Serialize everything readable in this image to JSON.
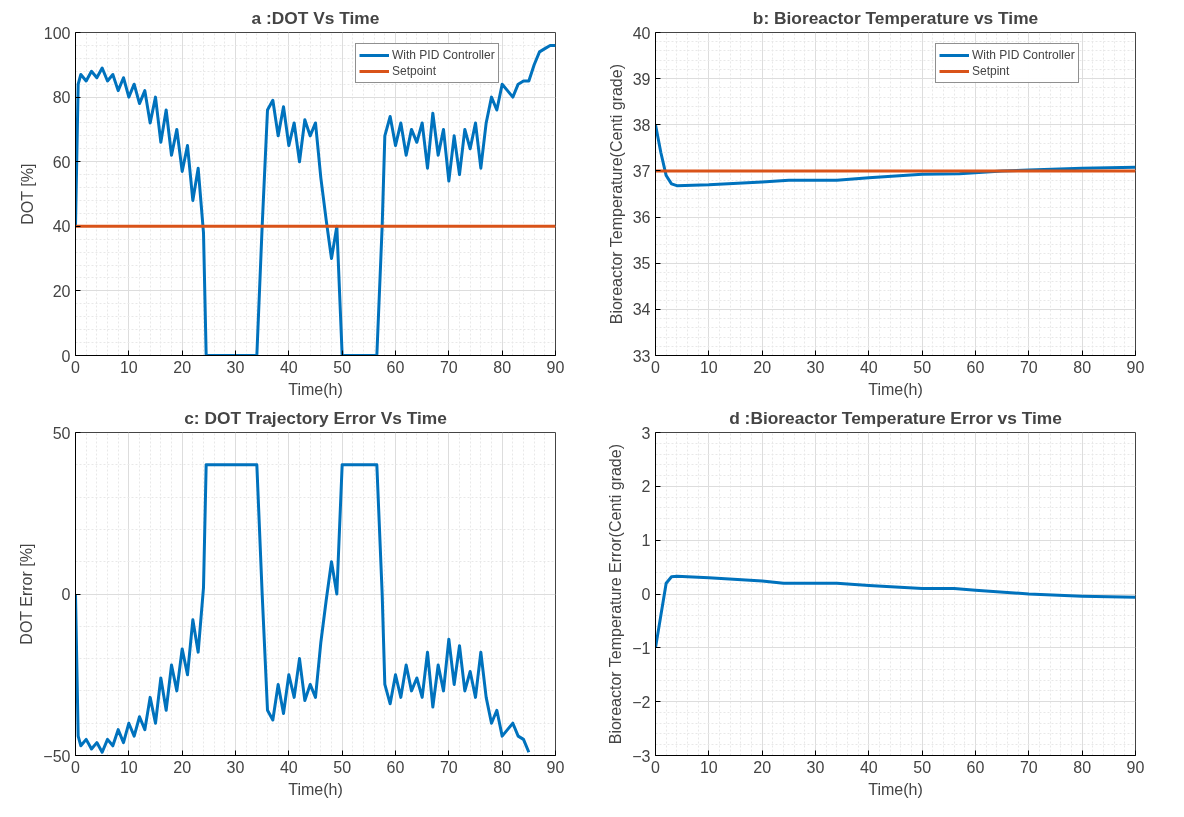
{
  "chart_data": [
    {
      "type": "line",
      "title": "a :DOT Vs Time",
      "xlabel": "Time(h)",
      "ylabel": "DOT [%]",
      "xlim": [
        0,
        90
      ],
      "xticks": [
        0,
        10,
        20,
        30,
        40,
        50,
        60,
        70,
        80,
        90
      ],
      "ylim": [
        0,
        100
      ],
      "yticks": [
        0,
        20,
        40,
        60,
        80,
        100
      ],
      "grid": true,
      "legend": "top right",
      "series": [
        {
          "name": "With PID Controller",
          "color": "#0072bd",
          "x": [
            0,
            0.5,
            1,
            2,
            3,
            4,
            5,
            6,
            7,
            8,
            9,
            10,
            11,
            12,
            13,
            14,
            15,
            16,
            17,
            18,
            19,
            20,
            21,
            22,
            23,
            24,
            24.5,
            34,
            35,
            36,
            37,
            38,
            39,
            40,
            41,
            42,
            43,
            44,
            45,
            46,
            47,
            48,
            49,
            50,
            56.5,
            57.5,
            58,
            59,
            60,
            61,
            62,
            63,
            64,
            65,
            66,
            67,
            68,
            69,
            70,
            71,
            72,
            73,
            74,
            75,
            76,
            77,
            78,
            79,
            80,
            81,
            82,
            83,
            84,
            85,
            86,
            87,
            88,
            89,
            90
          ],
          "values": [
            40,
            84,
            87,
            85,
            88,
            86,
            89,
            85,
            87,
            82,
            86,
            80,
            84,
            78,
            82,
            72,
            80,
            66,
            76,
            62,
            70,
            57,
            65,
            48,
            58,
            38,
            0,
            0,
            40,
            76,
            79,
            68,
            77,
            65,
            72,
            60,
            73,
            68,
            72,
            55,
            42,
            30,
            40,
            0,
            0,
            40,
            68,
            74,
            65,
            72,
            62,
            70,
            66,
            72,
            58,
            75,
            62,
            70,
            54,
            68,
            56,
            70,
            64,
            72,
            58,
            72,
            80,
            76,
            84,
            82,
            80,
            84,
            85,
            85,
            90,
            94,
            95,
            96,
            96
          ]
        },
        {
          "name": "Setpoint",
          "color": "#d95319",
          "x": [
            0,
            90
          ],
          "values": [
            40,
            40
          ]
        }
      ]
    },
    {
      "type": "line",
      "title": "b: Bioreactor Temperature vs Time",
      "xlabel": "Time(h)",
      "ylabel": "Bioreactor Temperature(Centi grade)",
      "xlim": [
        0,
        90
      ],
      "xticks": [
        0,
        10,
        20,
        30,
        40,
        50,
        60,
        70,
        80,
        90
      ],
      "ylim": [
        33,
        40
      ],
      "yticks": [
        33,
        34,
        35,
        36,
        37,
        38,
        39,
        40
      ],
      "grid": true,
      "legend": "top right",
      "series": [
        {
          "name": "With PID Controller",
          "color": "#0072bd",
          "x": [
            0,
            1,
            2,
            3,
            4,
            10,
            20,
            25,
            34,
            40,
            50,
            57,
            65,
            70,
            80,
            90
          ],
          "values": [
            38,
            37.4,
            36.9,
            36.72,
            36.68,
            36.7,
            36.76,
            36.8,
            36.8,
            36.85,
            36.93,
            36.94,
            37.0,
            37.02,
            37.06,
            37.08
          ]
        },
        {
          "name": "Setpint",
          "color": "#d95319",
          "x": [
            0,
            90
          ],
          "values": [
            37,
            37
          ]
        }
      ]
    },
    {
      "type": "line",
      "title": "c: DOT Trajectory Error Vs Time",
      "xlabel": "Time(h)",
      "ylabel": "DOT Error [%]",
      "xlim": [
        0,
        90
      ],
      "xticks": [
        0,
        10,
        20,
        30,
        40,
        50,
        60,
        70,
        80,
        90
      ],
      "ylim": [
        -50,
        50
      ],
      "yticks": [
        -50,
        0,
        50
      ],
      "grid": true,
      "series": [
        {
          "color": "#0072bd",
          "x": [
            0,
            0.5,
            1,
            2,
            3,
            4,
            5,
            6,
            7,
            8,
            9,
            10,
            11,
            12,
            13,
            14,
            15,
            16,
            17,
            18,
            19,
            20,
            21,
            22,
            23,
            24,
            24.5,
            34,
            35,
            36,
            37,
            38,
            39,
            40,
            41,
            42,
            43,
            44,
            45,
            46,
            47,
            48,
            49,
            50,
            56.5,
            57.5,
            58,
            59,
            60,
            61,
            62,
            63,
            64,
            65,
            66,
            67,
            68,
            69,
            70,
            71,
            72,
            73,
            74,
            75,
            76,
            77,
            78,
            79,
            80,
            81,
            82,
            83,
            84,
            85
          ],
          "values": [
            0,
            -44,
            -47,
            -45,
            -48,
            -46,
            -49,
            -45,
            -47,
            -42,
            -46,
            -40,
            -44,
            -38,
            -42,
            -32,
            -40,
            -26,
            -36,
            -22,
            -30,
            -17,
            -25,
            -8,
            -18,
            2,
            40,
            40,
            0,
            -36,
            -39,
            -28,
            -37,
            -25,
            -32,
            -20,
            -33,
            -28,
            -32,
            -15,
            -2,
            10,
            0,
            40,
            40,
            0,
            -28,
            -34,
            -25,
            -32,
            -22,
            -30,
            -26,
            -32,
            -18,
            -35,
            -22,
            -30,
            -14,
            -28,
            -16,
            -30,
            -24,
            -32,
            -18,
            -32,
            -40,
            -36,
            -44,
            -42,
            -40,
            -44,
            -45,
            -49
          ]
        }
      ]
    },
    {
      "type": "line",
      "title": "d :Bioreactor Temperature Error vs Time",
      "xlabel": "Time(h)",
      "ylabel": "Bioreactor Temperature Error(Centi grade)",
      "xlim": [
        0,
        90
      ],
      "xticks": [
        0,
        10,
        20,
        30,
        40,
        50,
        60,
        70,
        80,
        90
      ],
      "ylim": [
        -3,
        3
      ],
      "yticks": [
        -3,
        -2,
        -1,
        0,
        1,
        2,
        3
      ],
      "grid": true,
      "series": [
        {
          "color": "#0072bd",
          "x": [
            0,
            1,
            2,
            3,
            4,
            10,
            20,
            24,
            34,
            40,
            50,
            56,
            60,
            70,
            80,
            90
          ],
          "values": [
            -1,
            -0.4,
            0.2,
            0.32,
            0.33,
            0.3,
            0.24,
            0.2,
            0.2,
            0.16,
            0.1,
            0.1,
            0.07,
            0,
            -0.04,
            -0.06
          ]
        }
      ]
    }
  ]
}
